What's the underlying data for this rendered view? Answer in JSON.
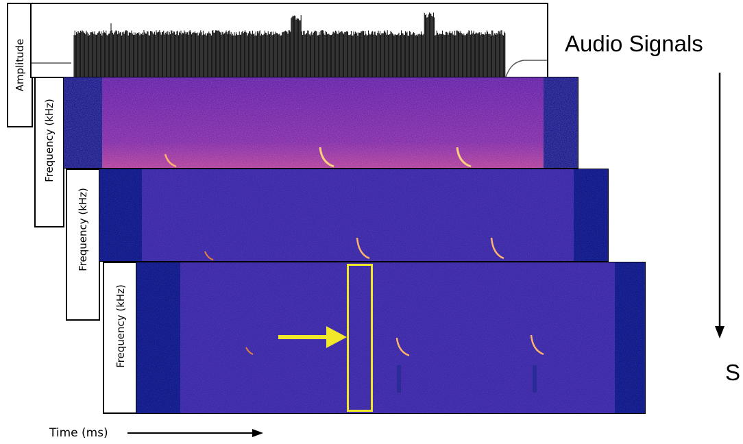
{
  "labels": {
    "amplitude": "Amplitude",
    "frequency": "Frequency (kHz)",
    "time": "Time (ms)",
    "audio_signals": "Audio Signals",
    "right_partial": "S"
  },
  "colors": {
    "spectrogram_base": "#2a2aa0",
    "spectrogram_edge": "#0d1a8a",
    "call": "#ffb36b",
    "highlight": "#f2e82a",
    "waveform": "#000000"
  },
  "icons": [
    "right-arrow-icon",
    "down-arrow-icon",
    "highlight-arrow-icon"
  ]
}
